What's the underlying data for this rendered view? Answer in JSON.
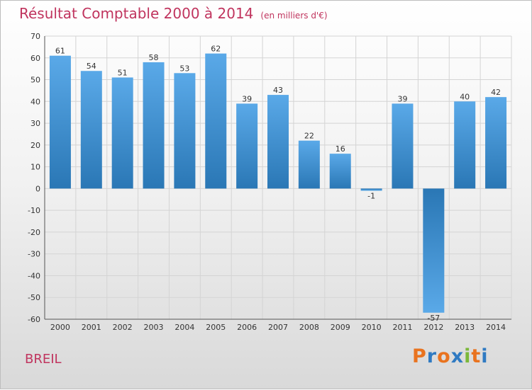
{
  "title": "Résultat Comptable 2000 à 2014",
  "subtitle": "(en milliers d'€)",
  "commune": "BREIL",
  "logo": {
    "letters": [
      "P",
      "r",
      "o",
      "x",
      "i",
      "t",
      "i"
    ]
  },
  "colors": {
    "title": "#c0345e",
    "bar_light": "#5aa9e8",
    "bar_dark": "#2a77b5",
    "logo_letters": [
      "#e9731f",
      "#2f7ac2",
      "#e9731f",
      "#2f7ac2",
      "#7bb83a",
      "#e9731f",
      "#2f7ac2"
    ]
  },
  "chart_data": {
    "type": "bar",
    "title": "Résultat Comptable 2000 à 2014",
    "ylabel": "(en milliers d'€)",
    "xlabel": "",
    "categories": [
      "2000",
      "2001",
      "2002",
      "2003",
      "2004",
      "2005",
      "2006",
      "2007",
      "2008",
      "2009",
      "2010",
      "2011",
      "2012",
      "2013",
      "2014"
    ],
    "values": [
      61,
      54,
      51,
      58,
      53,
      62,
      39,
      43,
      22,
      16,
      -1,
      39,
      -57,
      40,
      42
    ],
    "ylim": [
      -60,
      70
    ],
    "yticks": [
      70,
      60,
      50,
      40,
      30,
      20,
      10,
      0,
      -10,
      -20,
      -30,
      -40,
      -50,
      -60
    ],
    "grid": true
  }
}
